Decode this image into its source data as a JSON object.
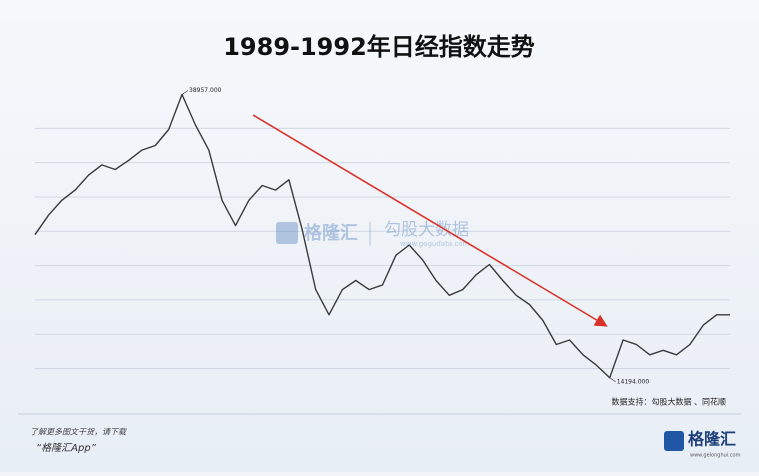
{
  "chart_data": {
    "type": "line",
    "title": "1989-1992年日经指数走势",
    "values": [
      26700,
      28400,
      29700,
      30600,
      31900,
      32800,
      32400,
      33200,
      34100,
      34500,
      35900,
      38957,
      36300,
      34100,
      29700,
      27500,
      29700,
      31000,
      30600,
      31500,
      27100,
      21900,
      19700,
      21900,
      22700,
      21900,
      22300,
      24900,
      25800,
      24500,
      22700,
      21400,
      21900,
      23200,
      24100,
      22700,
      21400,
      20600,
      19200,
      17100,
      17500,
      16200,
      15300,
      14194,
      17500,
      17100,
      16200,
      16600,
      16200,
      17100,
      18800,
      19700,
      19700
    ],
    "color": "#3a3a3a",
    "ylim": [
      14000,
      39000
    ],
    "yticks": [
      15000,
      18000,
      21000,
      24000,
      27000,
      30000,
      33000,
      36000
    ],
    "grid": true,
    "annotations": [
      {
        "value": 38957,
        "label": "38957.000"
      },
      {
        "value": 14194,
        "label": "14194.000"
      }
    ],
    "source": "数据支持：勾股大数据 、同花顺"
  },
  "watermark": {
    "brand": "格隆汇",
    "partner": "勾股大数据",
    "url": "www.gogudata.com"
  },
  "footer": {
    "line1": "了解更多图文干货，请下载",
    "line2": "“格隆汇App”",
    "logo": "格隆汇",
    "logo_url": "www.gelonghui.com"
  }
}
